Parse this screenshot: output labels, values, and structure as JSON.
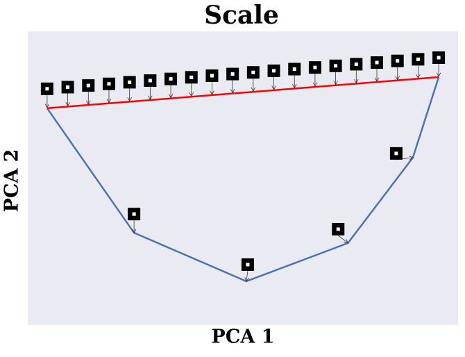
{
  "chart_data": {
    "type": "line",
    "title": "Scale",
    "xlabel": "PCA 1",
    "ylabel": "PCA 2",
    "xlim": [
      0,
      100
    ],
    "ylim": [
      0,
      100
    ],
    "background": "#eaeaf2",
    "series": [
      {
        "color": "#4c72b0",
        "x": [
          4.5,
          24.7,
          50.8,
          74.4,
          89.5,
          95.5
        ],
        "values": [
          73.8,
          31.4,
          14.9,
          27.9,
          57.0,
          84.4
        ]
      },
      {
        "color": "#ff0000",
        "x": [
          4.5,
          95.5
        ],
        "values": [
          73.8,
          84.4
        ]
      }
    ]
  }
}
